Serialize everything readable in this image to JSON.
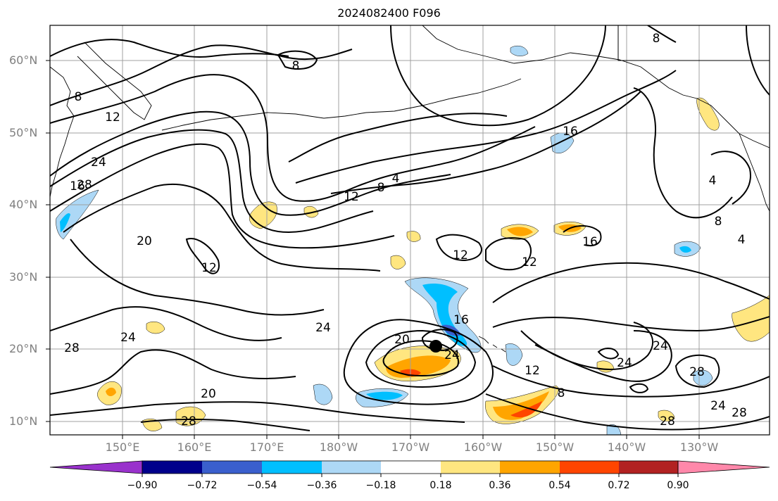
{
  "title": "2024082400 F096",
  "map": {
    "projection": "equirectangular",
    "lon_range": [
      "140°E",
      "125°W"
    ],
    "lat_range": [
      "8°N",
      "65°N"
    ],
    "gridlines": true,
    "lat_labels": [
      "60°N",
      "50°N",
      "40°N",
      "30°N",
      "20°N",
      "10°N"
    ],
    "lon_labels": [
      "150°E",
      "160°E",
      "170°E",
      "180°W",
      "170°W",
      "160°W",
      "150°W",
      "140°W",
      "130°W"
    ],
    "contour_color": "#000000",
    "contour_labels": [
      "8",
      "12",
      "24",
      "28",
      "20",
      "12",
      "16",
      "8",
      "4",
      "12",
      "8",
      "16",
      "12",
      "16",
      "24",
      "20",
      "24",
      "16",
      "12",
      "8",
      "24",
      "28",
      "24",
      "28",
      "24",
      "20",
      "28",
      "28",
      "8",
      "4",
      "4",
      "8",
      "12",
      "24",
      "28"
    ],
    "storm_marker": {
      "lon": "166°W",
      "lat": "20°N",
      "color": "#000000"
    }
  },
  "colorbar": {
    "tick_labels": [
      "−0.90",
      "−0.72",
      "−0.54",
      "−0.36",
      "−0.18",
      "0.18",
      "0.36",
      "0.54",
      "0.72",
      "0.90"
    ],
    "colors": [
      "#9932cc",
      "#00008b",
      "#3a5fcd",
      "#00bfff",
      "#add8f6",
      "#ffffff",
      "#ffe680",
      "#ffa500",
      "#ff4500",
      "#b22222",
      "#ff88aa"
    ],
    "extend": "both"
  }
}
